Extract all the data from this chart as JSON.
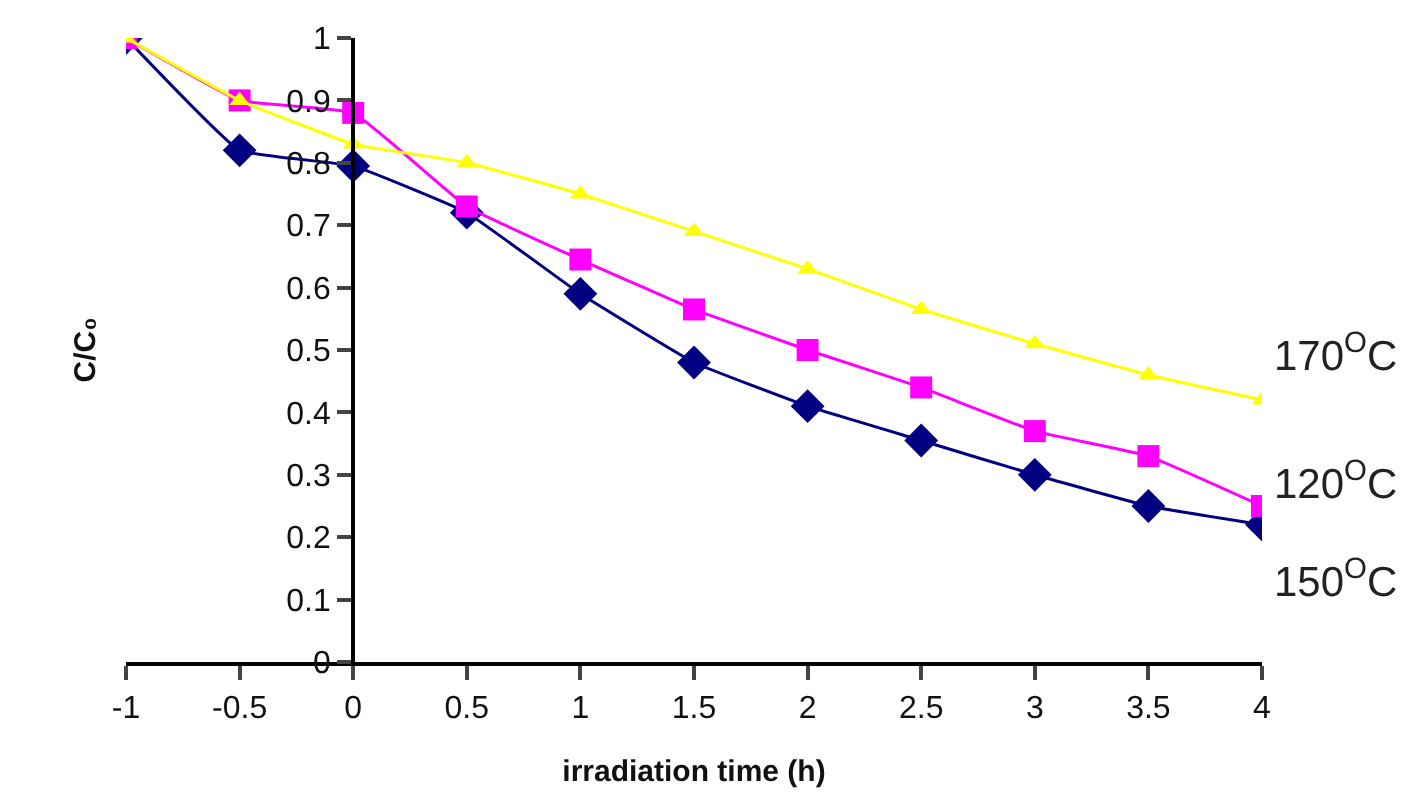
{
  "chart_data": {
    "type": "line",
    "xlabel": "irradiation time (h)",
    "ylabel": "C/C₀",
    "x": [
      -1,
      -0.5,
      0,
      0.5,
      1,
      1.5,
      2,
      2.5,
      3,
      3.5,
      4
    ],
    "series": [
      {
        "name": "150$^{O}$C",
        "color": "#000080",
        "marker": "diamond",
        "values": [
          1.0,
          0.82,
          0.795,
          0.72,
          0.59,
          0.48,
          0.41,
          0.355,
          0.3,
          0.25,
          0.22
        ]
      },
      {
        "name": "120$^{O}$C",
        "color": "#ff00ff",
        "marker": "square",
        "values": [
          1.0,
          0.9,
          0.88,
          0.73,
          0.645,
          0.565,
          0.5,
          0.44,
          0.37,
          0.33,
          0.25
        ]
      },
      {
        "name": "170$^{O}$C",
        "color": "#ffff00",
        "marker": "triangle",
        "values": [
          1.0,
          0.9,
          0.83,
          0.8,
          0.75,
          0.69,
          0.63,
          0.565,
          0.51,
          0.46,
          0.42
        ]
      }
    ],
    "xlim": [
      -1,
      4
    ],
    "xticks": [
      -1,
      -0.5,
      0,
      0.5,
      1,
      1.5,
      2,
      2.5,
      3,
      3.5,
      4
    ],
    "ylim": [
      0,
      1
    ],
    "yticks": [
      0,
      0.1,
      0.2,
      0.3,
      0.4,
      0.5,
      0.6,
      0.7,
      0.8,
      0.9,
      1
    ],
    "legend": false,
    "line_style": "solid"
  }
}
